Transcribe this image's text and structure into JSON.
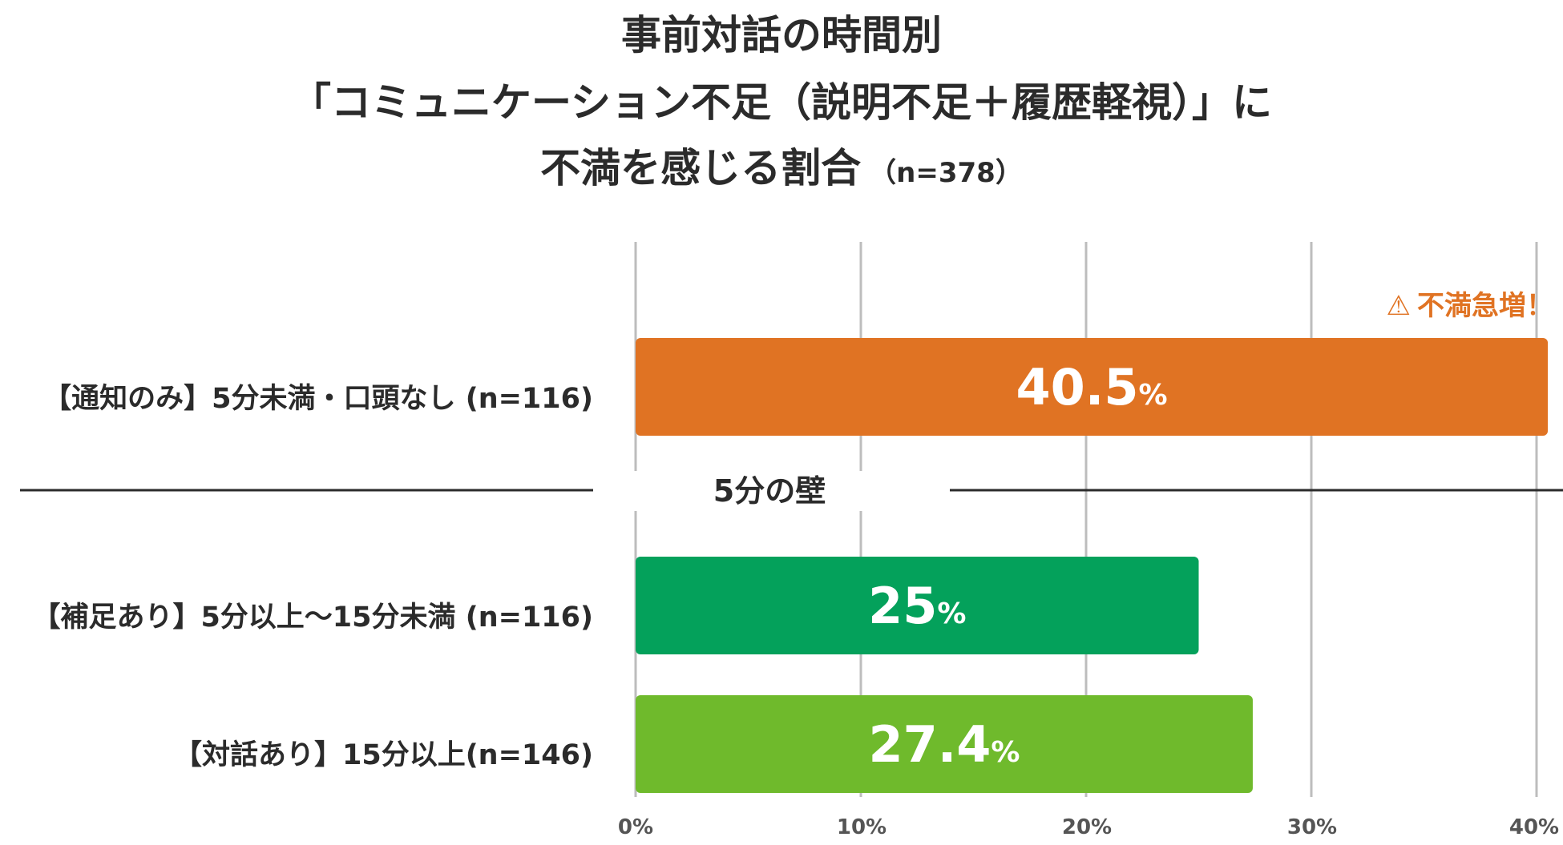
{
  "title": {
    "line1": "事前対話の時間別",
    "line2": "「コミュニケーション不足（説明不足＋履歴軽視）」に",
    "line3": "不満を感じる割合",
    "n_label": "（n=378）"
  },
  "colors": {
    "orange": "#e07323",
    "dark_green": "#04a15b",
    "light_green": "#6fba2c",
    "text": "#2b2b2b",
    "grid": "#bdbdbd"
  },
  "chart_data": {
    "type": "bar",
    "orientation": "horizontal",
    "categories": [
      "【通知のみ】5分未満・口頭なし (n=116)",
      "【補足あり】5分以上〜15分未満 (n=116)",
      "【対話あり】15分以上(n=146)"
    ],
    "values": [
      40.5,
      25,
      27.4
    ],
    "value_labels": [
      "40.5",
      "25",
      "27.4"
    ],
    "value_unit": "%",
    "bar_colors": [
      "#e07323",
      "#04a15b",
      "#6fba2c"
    ],
    "xlim": [
      0,
      40
    ],
    "x_ticks": [
      "0%",
      "10%",
      "20%",
      "30%",
      "40%"
    ],
    "grid": true,
    "divider_label": "5分の壁",
    "annotation": "不満急増！",
    "annotation_icon": "warning-icon"
  }
}
